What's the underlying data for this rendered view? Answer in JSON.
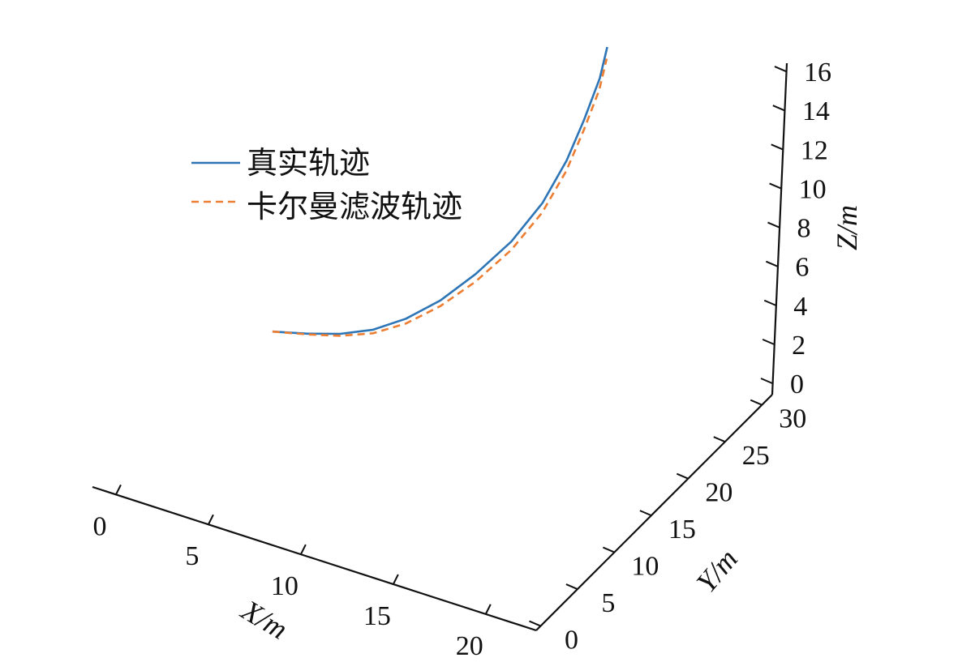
{
  "chart_data": {
    "type": "line",
    "projection": "3d",
    "xlabel": "X/m",
    "ylabel": "Y/m",
    "zlabel": "Z/m",
    "xlim": [
      0,
      24
    ],
    "ylim": [
      0,
      32
    ],
    "zlim": [
      0,
      17
    ],
    "xticks": [
      "0",
      "5",
      "10",
      "15",
      "20"
    ],
    "yticks": [
      "0",
      "5",
      "10",
      "15",
      "20",
      "25",
      "30"
    ],
    "zticks": [
      "0",
      "2",
      "4",
      "6",
      "8",
      "10",
      "12",
      "14",
      "16"
    ],
    "grid": false,
    "legend_position": "upper-left",
    "series": [
      {
        "name": "真实轨迹",
        "color": "#2e75b6",
        "style": "solid",
        "x": [
          1.0,
          2.6,
          4.2,
          5.8,
          7.3,
          8.8,
          10.3,
          11.8,
          13.1,
          14.1,
          14.9,
          15.6,
          16.0
        ],
        "y": [
          21.9,
          22.6,
          23.0,
          23.4,
          24.0,
          24.8,
          25.6,
          26.5,
          27.2,
          27.7,
          27.8,
          27.9,
          27.7
        ],
        "z": [
          0.0,
          0.12,
          0.45,
          1.0,
          1.8,
          2.9,
          4.4,
          6.2,
          8.3,
          10.6,
          12.9,
          15.2,
          17.0
        ]
      },
      {
        "name": "卡尔曼滤波轨迹",
        "color": "#ed7d31",
        "style": "dashed",
        "x": [
          1.0,
          2.6,
          4.2,
          5.8,
          7.3,
          8.8,
          10.3,
          11.8,
          13.1,
          14.1,
          14.9,
          15.6,
          16.0
        ],
        "y": [
          21.9,
          22.6,
          23.0,
          23.4,
          24.0,
          24.8,
          25.6,
          26.5,
          27.2,
          27.7,
          27.8,
          27.9,
          27.7
        ],
        "z": [
          0.0,
          0.08,
          0.35,
          0.82,
          1.55,
          2.6,
          4.0,
          5.75,
          7.8,
          10.05,
          12.35,
          14.6,
          16.4
        ]
      }
    ]
  }
}
